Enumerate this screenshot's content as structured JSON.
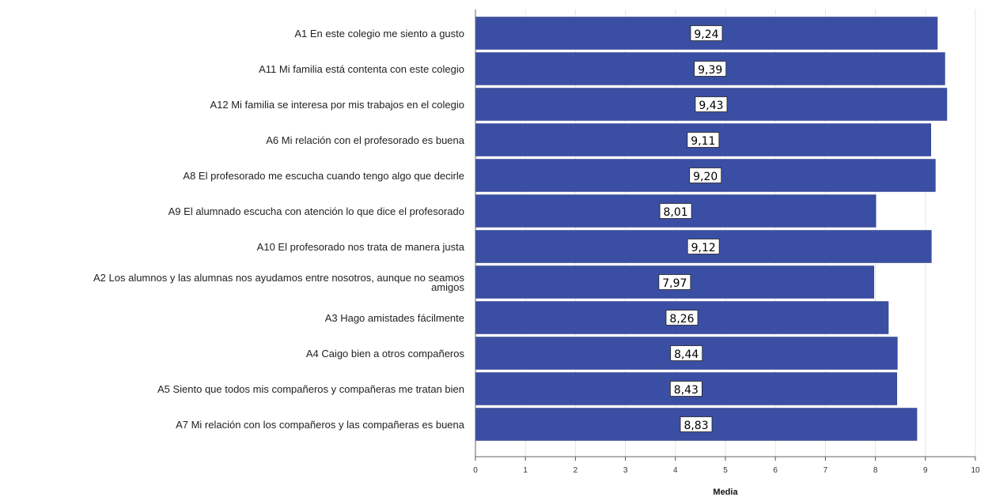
{
  "chart_data": {
    "type": "bar",
    "orientation": "horizontal",
    "categories": [
      "A1 En este colegio me siento a gusto",
      "A11 Mi familia está contenta con este colegio",
      "A12 Mi familia se interesa por mis trabajos en el colegio",
      "A6 Mi relación con el profesorado es buena",
      "A8 El profesorado me escucha cuando tengo algo que decirle",
      "A9 El alumnado escucha con atención lo que dice el profesorado",
      "A10 El profesorado nos trata de manera justa",
      "A2 Los alumnos y las alumnas nos ayudamos entre nosotros, aunque no seamos amigos",
      "A3 Hago amistades fácilmente",
      "A4 Caigo bien a otros compañeros",
      "A5 Siento que todos mis compañeros y compañeras me tratan bien",
      "A7 Mi relación con los compañeros y las compañeras es buena"
    ],
    "category_lines": [
      [
        "A1 En este colegio me siento a gusto"
      ],
      [
        "A11 Mi familia está contenta con este colegio"
      ],
      [
        "A12 Mi familia se interesa por mis trabajos en el colegio"
      ],
      [
        "A6 Mi relación con el profesorado es buena"
      ],
      [
        "A8 El profesorado me escucha cuando tengo algo que decirle"
      ],
      [
        "A9 El alumnado escucha con atención lo que dice el profesorado"
      ],
      [
        "A10 El profesorado nos trata de manera justa"
      ],
      [
        "A2 Los alumnos y las alumnas nos ayudamos entre nosotros, aunque no seamos",
        "amigos"
      ],
      [
        "A3 Hago amistades fácilmente"
      ],
      [
        "A4 Caigo bien a otros compañeros"
      ],
      [
        "A5 Siento que todos mis compañeros y compañeras me tratan bien"
      ],
      [
        "A7 Mi relación con los compañeros y las compañeras es buena"
      ]
    ],
    "values": [
      9.24,
      9.39,
      9.43,
      9.11,
      9.2,
      8.01,
      9.12,
      7.97,
      8.26,
      8.44,
      8.43,
      8.83
    ],
    "value_labels": [
      "9,24",
      "9,39",
      "9,43",
      "9,11",
      "9,20",
      "8,01",
      "9,12",
      "7,97",
      "8,26",
      "8,44",
      "8,43",
      "8,83"
    ],
    "xlabel": "Media",
    "ylabel": "",
    "xlim": [
      0,
      10
    ],
    "xticks": [
      "0",
      "1",
      "2",
      "3",
      "4",
      "5",
      "6",
      "7",
      "8",
      "9",
      "10"
    ],
    "grid": true,
    "bar_color": "#3a4fa3",
    "grid_color": "#e6e6e6"
  }
}
